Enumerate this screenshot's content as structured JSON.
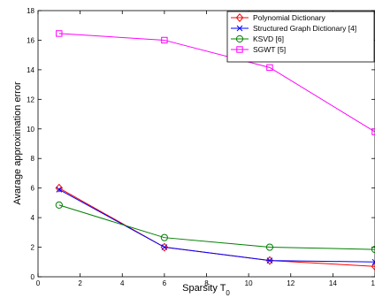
{
  "chart_data": {
    "type": "line",
    "xlabel": "Sparsity T",
    "xlabel_sub": "0",
    "ylabel": "Avarage approximation error",
    "xlim": [
      0,
      16
    ],
    "ylim": [
      0,
      18
    ],
    "xticks": [
      0,
      2,
      4,
      6,
      8,
      10,
      12,
      14,
      16
    ],
    "yticks": [
      0,
      2,
      4,
      6,
      8,
      10,
      12,
      14,
      16,
      18
    ],
    "x": [
      1,
      6,
      11,
      16
    ],
    "legend_position": "top-right",
    "grid": false,
    "series": [
      {
        "name": "Polynomial Dictionary",
        "values": [
          6.0,
          2.0,
          1.1,
          0.7
        ],
        "color": "#ff0000",
        "marker": "diamond"
      },
      {
        "name": "Structured Graph Dictionary [4]",
        "values": [
          5.9,
          2.0,
          1.1,
          1.0
        ],
        "color": "#0000ff",
        "marker": "x"
      },
      {
        "name": "KSVD [6]",
        "values": [
          4.85,
          2.65,
          2.0,
          1.85
        ],
        "color": "#007f00",
        "marker": "circle"
      },
      {
        "name": "SGWT [5]",
        "values": [
          16.45,
          16.0,
          14.15,
          9.8
        ],
        "color": "#ff00ff",
        "marker": "square"
      }
    ]
  }
}
